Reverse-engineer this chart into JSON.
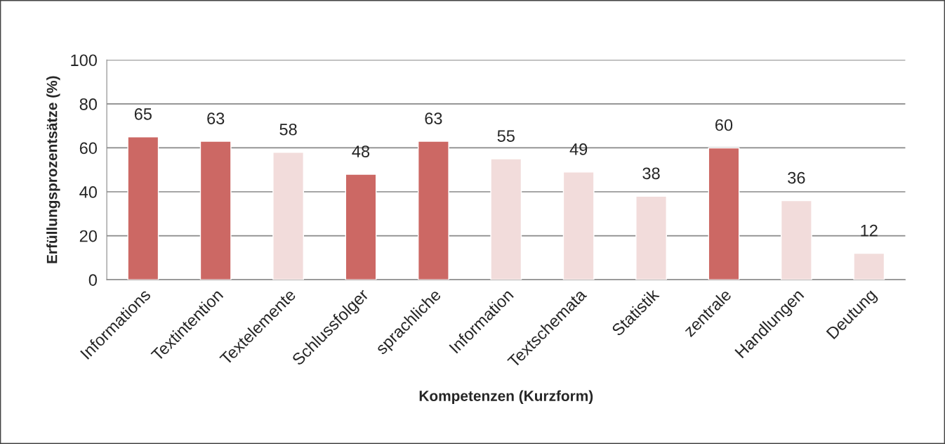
{
  "chart_data": {
    "type": "bar",
    "xlabel": "Kompetenzen (Kurzform)",
    "ylabel": "Erfüllungsprozentsätze (%)",
    "categories": [
      "Informations",
      "Textintention",
      "Textelemente",
      "Schlussfolger",
      "sprachliche",
      "Information",
      "Textschemata",
      "Statistik",
      "zentrale",
      "Handlungen",
      "Deutung"
    ],
    "values": [
      65,
      63,
      58,
      48,
      63,
      55,
      49,
      38,
      60,
      36,
      12
    ],
    "colors": [
      "#cc6864",
      "#cc6864",
      "#f2dcdb",
      "#cc6864",
      "#cc6864",
      "#f2dcdb",
      "#f2dcdb",
      "#f2dcdb",
      "#cc6864",
      "#f2dcdb",
      "#f2dcdb"
    ],
    "ylim": [
      0,
      100
    ],
    "yticks": [
      0,
      20,
      40,
      60,
      80,
      100
    ],
    "grid": "y",
    "data_labels": true,
    "legend": false
  }
}
